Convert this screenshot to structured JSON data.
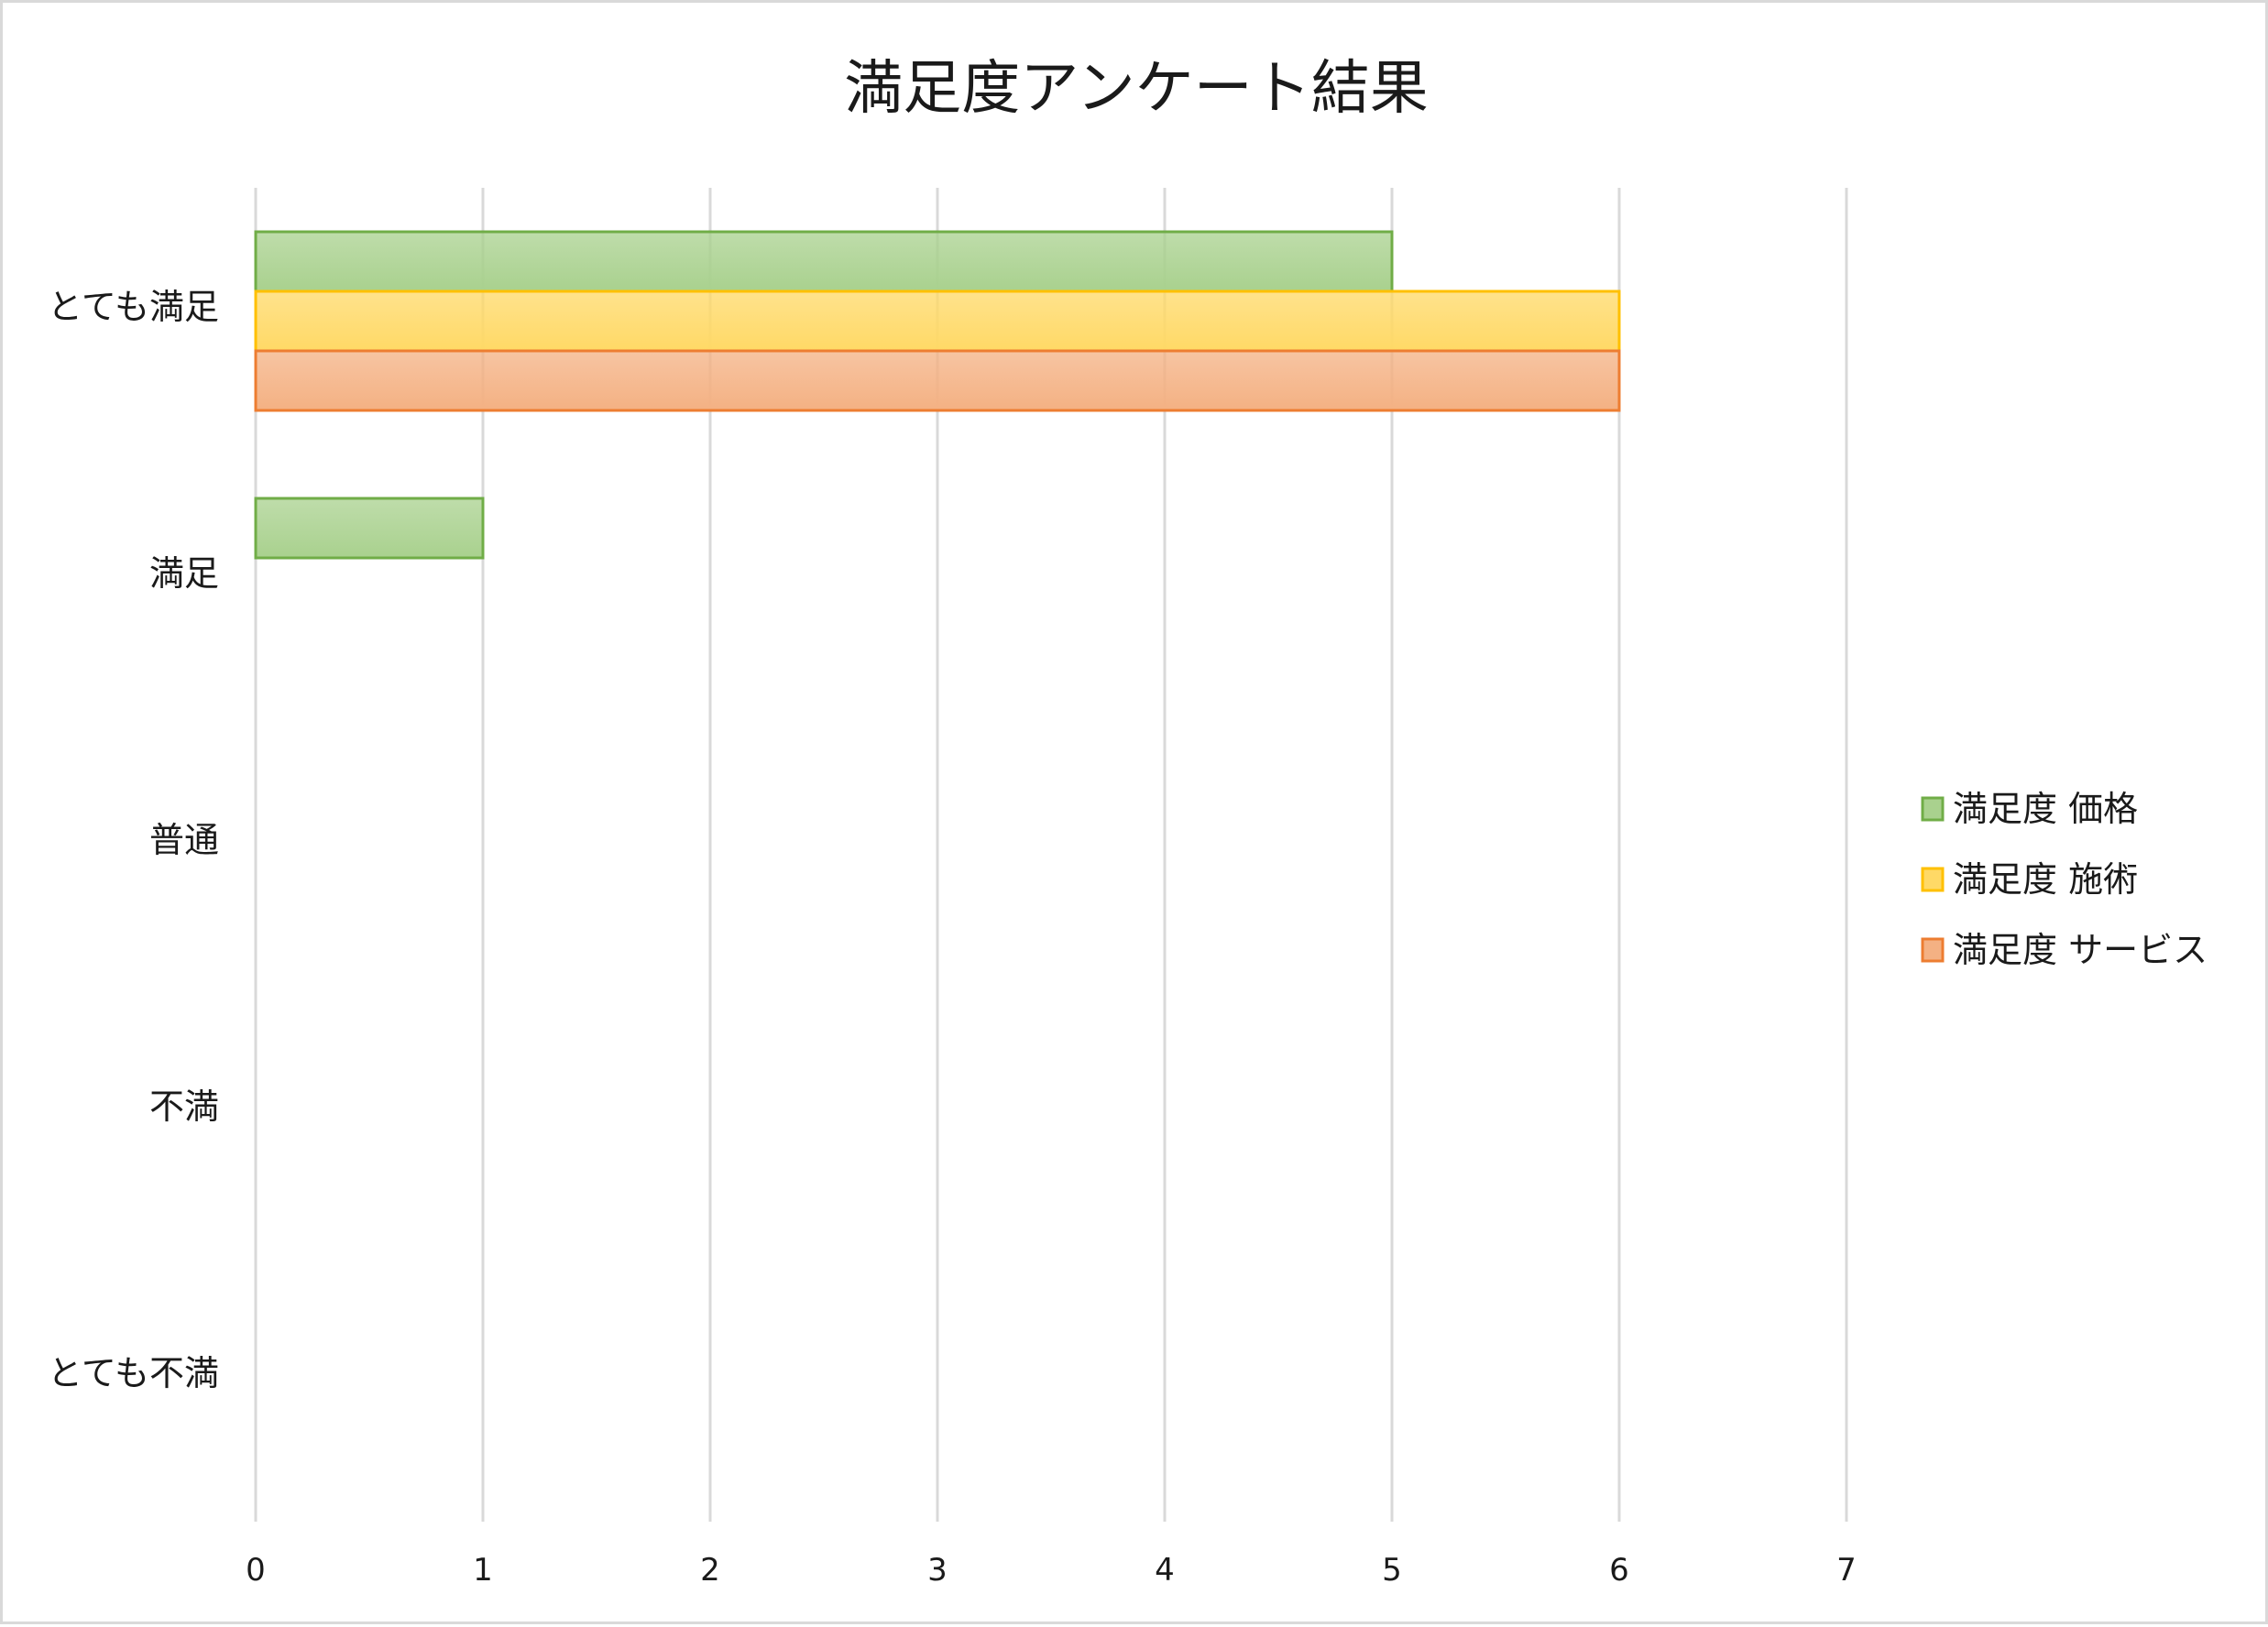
{
  "chart_data": {
    "type": "bar",
    "orientation": "horizontal",
    "title": "満足度アンケート結果",
    "xlabel": "",
    "ylabel": "",
    "categories": [
      "とても満足",
      "満足",
      "普通",
      "不満",
      "とても不満"
    ],
    "series": [
      {
        "name": "満足度 価格",
        "values": [
          5,
          1,
          0,
          0,
          0
        ],
        "fill": "#a9d18e",
        "stroke": "#70ad47"
      },
      {
        "name": "満足度 施術",
        "values": [
          6,
          0,
          0,
          0,
          0
        ],
        "fill": "#ffd966",
        "stroke": "#ffc000"
      },
      {
        "name": "満足度 サービス",
        "values": [
          6,
          0,
          0,
          0,
          0
        ],
        "fill": "#f4b183",
        "stroke": "#ed7d31"
      }
    ],
    "xlim": [
      0,
      7
    ],
    "xticks": [
      "0",
      "1",
      "2",
      "3",
      "4",
      "5",
      "6",
      "7"
    ],
    "grid": true,
    "legend": "right"
  }
}
